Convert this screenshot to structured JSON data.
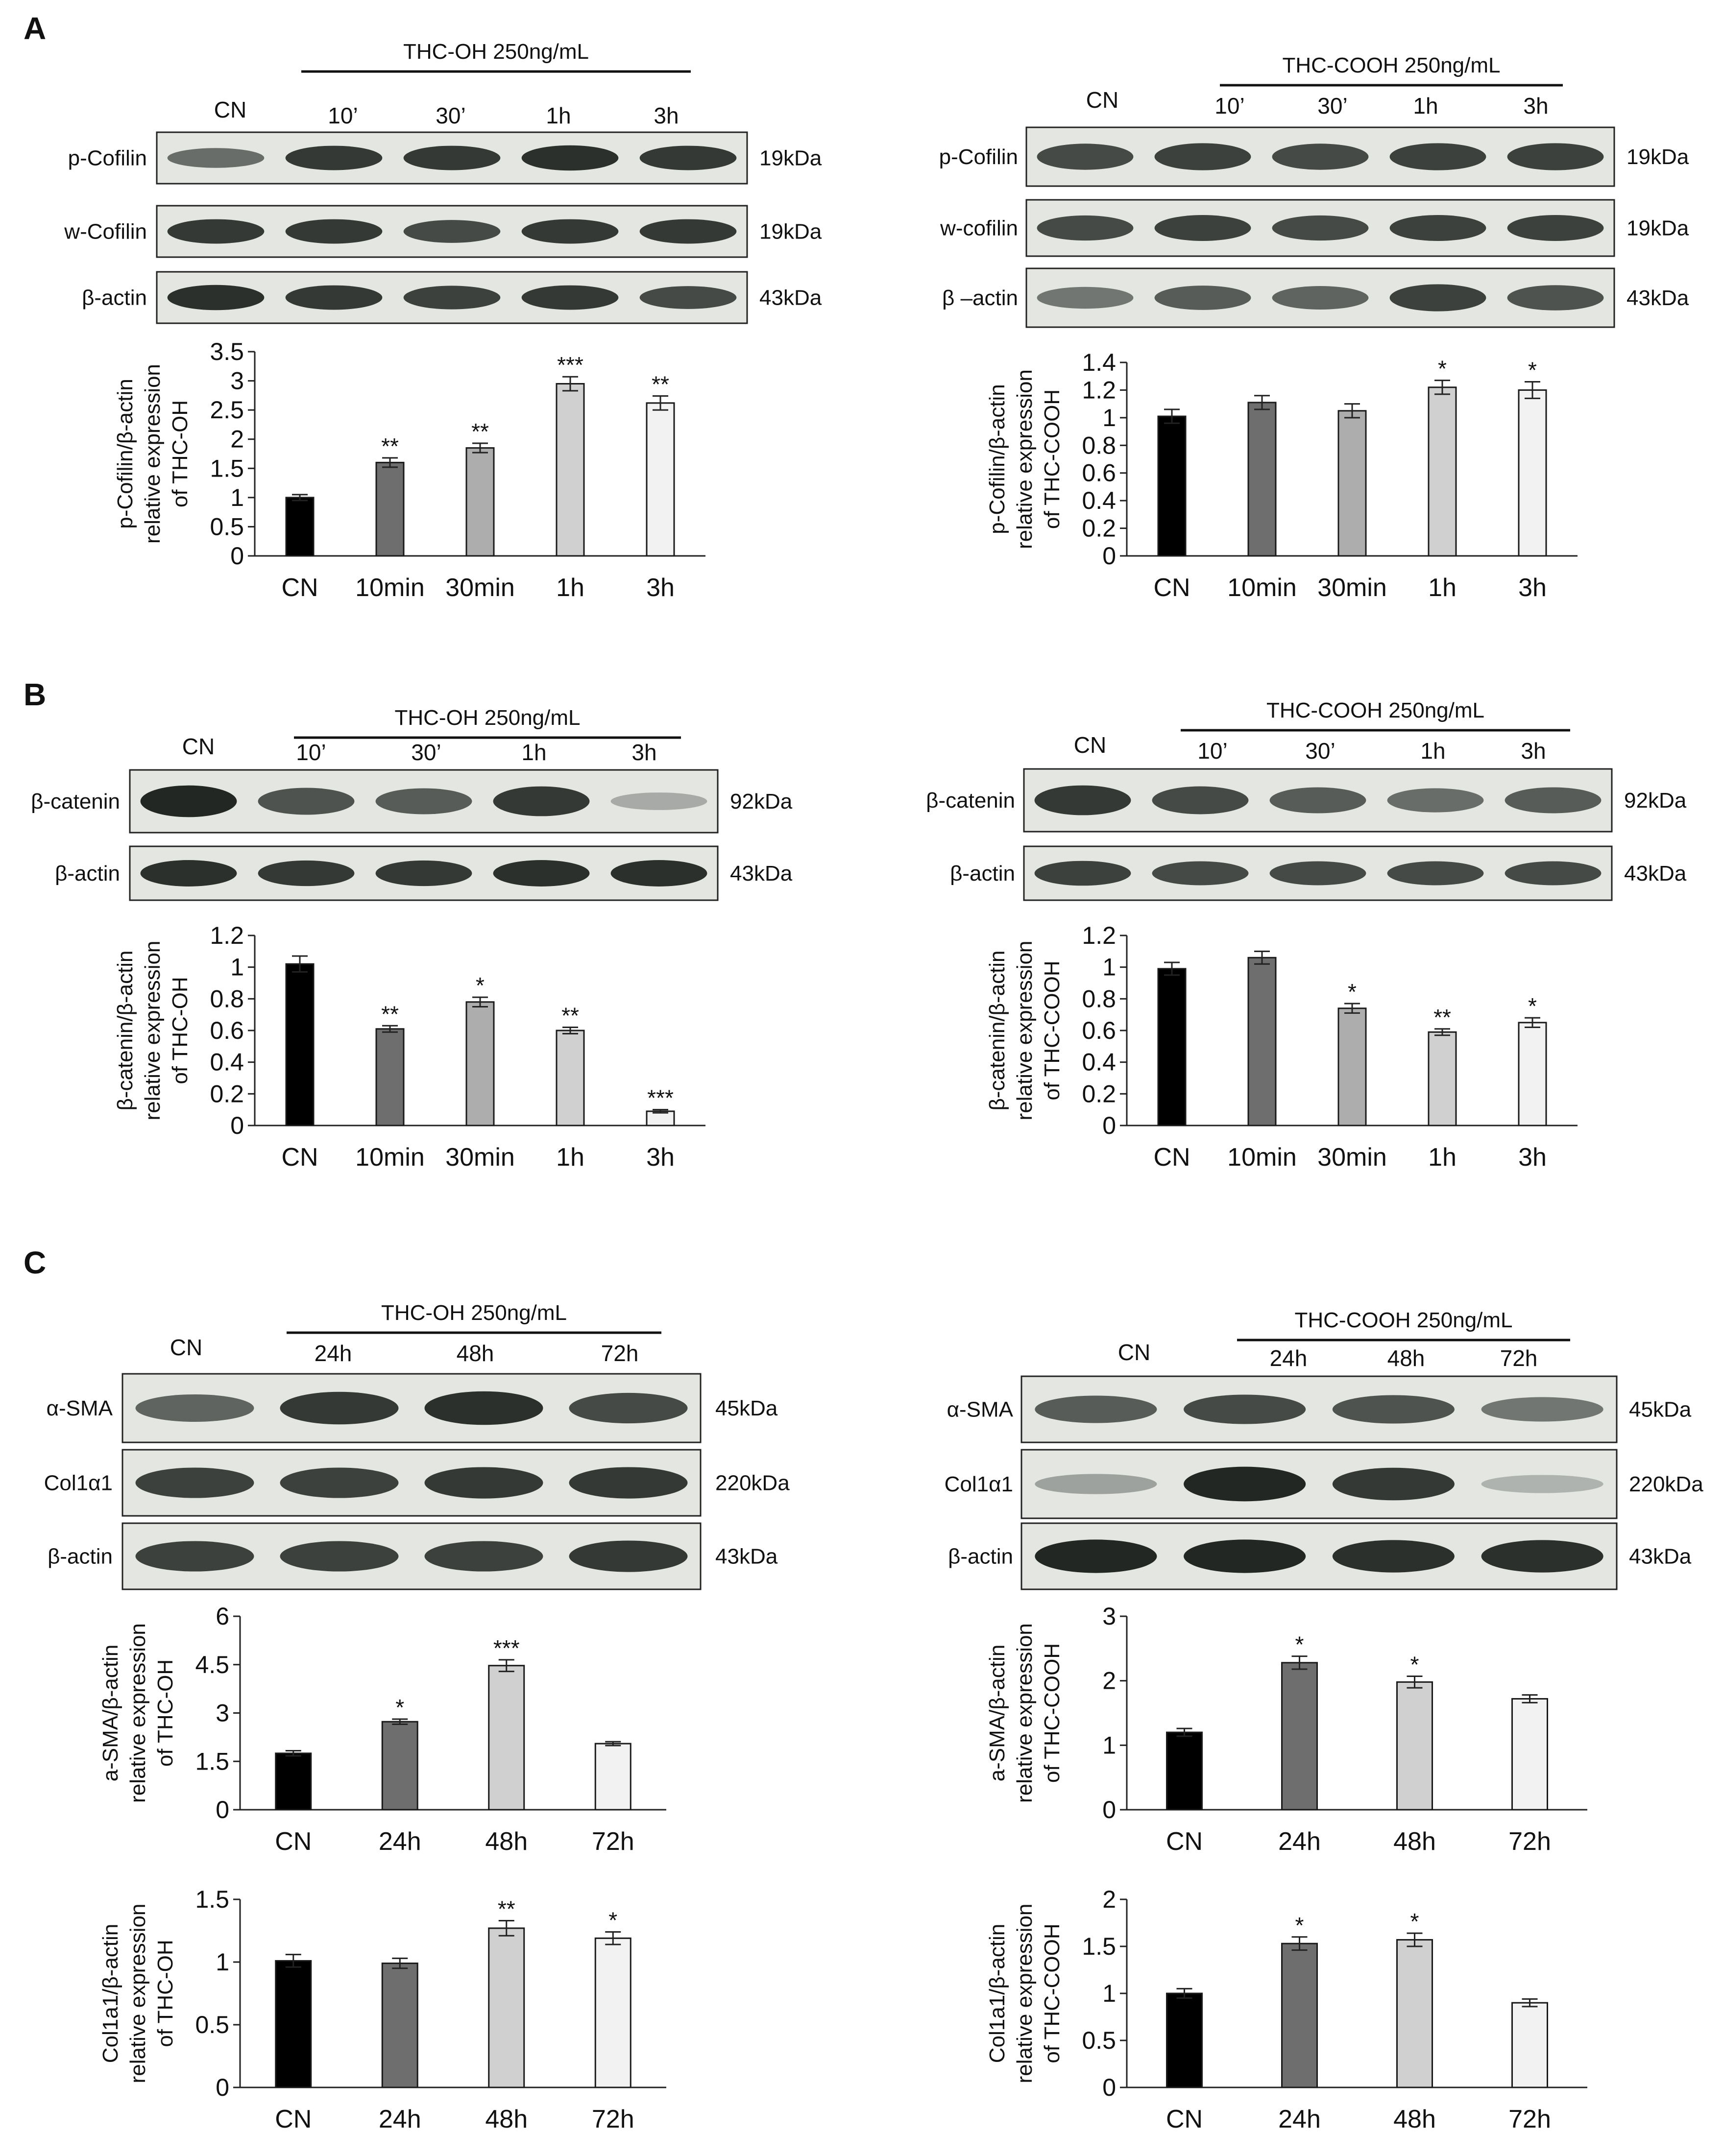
{
  "figure": {
    "panels": [
      {
        "letter": "A",
        "blots": [
          {
            "treatment": "THC-OH 250ng/mL",
            "lanes": [
              "CN",
              "10’",
              "30’",
              "1h",
              "3h"
            ],
            "rows": [
              {
                "label": "p-Cofilin",
                "kda": "19kDa",
                "intensity": [
                  0.55,
                  0.85,
                  0.85,
                  0.9,
                  0.85
                ]
              },
              {
                "label": "w-Cofilin",
                "kda": "19kDa",
                "intensity": [
                  0.85,
                  0.85,
                  0.75,
                  0.85,
                  0.85
                ]
              },
              {
                "label": "β-actin",
                "kda": "43kDa",
                "intensity": [
                  0.9,
                  0.85,
                  0.8,
                  0.85,
                  0.75
                ]
              }
            ]
          },
          {
            "treatment": "THC-COOH 250ng/mL",
            "lanes": [
              "CN",
              "10’",
              "30’",
              "1h",
              "3h"
            ],
            "rows": [
              {
                "label": "p-Cofilin",
                "kda": "19kDa",
                "intensity": [
                  0.75,
                  0.8,
                  0.75,
                  0.8,
                  0.8
                ]
              },
              {
                "label": "w-cofilin",
                "kda": "19kDa",
                "intensity": [
                  0.75,
                  0.8,
                  0.75,
                  0.8,
                  0.8
                ]
              },
              {
                "label": "β –actin",
                "kda": "43kDa",
                "intensity": [
                  0.5,
                  0.65,
                  0.6,
                  0.8,
                  0.7
                ]
              }
            ]
          }
        ]
      },
      {
        "letter": "B",
        "blots": [
          {
            "treatment": "THC-OH 250ng/mL",
            "lanes": [
              "CN",
              "10’",
              "30’",
              "1h",
              "3h"
            ],
            "rows": [
              {
                "label": "β-catenin",
                "kda": "92kDa",
                "intensity": [
                  0.95,
                  0.7,
                  0.65,
                  0.85,
                  0.2
                ]
              },
              {
                "label": "β-actin",
                "kda": "43kDa",
                "intensity": [
                  0.9,
                  0.85,
                  0.85,
                  0.9,
                  0.9
                ]
              }
            ]
          },
          {
            "treatment": "THC-COOH 250ng/mL",
            "lanes": [
              "CN",
              "10’",
              "30’",
              "1h",
              "3h"
            ],
            "rows": [
              {
                "label": "β-catenin",
                "kda": "92kDa",
                "intensity": [
                  0.85,
                  0.75,
                  0.65,
                  0.55,
                  0.65
                ]
              },
              {
                "label": "β-actin",
                "kda": "43kDa",
                "intensity": [
                  0.8,
                  0.75,
                  0.75,
                  0.75,
                  0.75
                ]
              }
            ]
          }
        ]
      },
      {
        "letter": "C",
        "blots": [
          {
            "treatment": "THC-OH 250ng/mL",
            "lanes": [
              "CN",
              "24h",
              "48h",
              "72h"
            ],
            "rows": [
              {
                "label": "α-SMA",
                "kda": "45kDa",
                "intensity": [
                  0.6,
                  0.85,
                  0.9,
                  0.75
                ]
              },
              {
                "label": "Col1α1",
                "kda": "220kDa",
                "intensity": [
                  0.8,
                  0.8,
                  0.85,
                  0.85
                ]
              },
              {
                "label": "β-actin",
                "kda": "43kDa",
                "intensity": [
                  0.8,
                  0.8,
                  0.8,
                  0.85
                ]
              }
            ]
          },
          {
            "treatment": "THC-COOH 250ng/mL",
            "lanes": [
              "CN",
              "24h",
              "48h",
              "72h"
            ],
            "rows": [
              {
                "label": "α-SMA",
                "kda": "45kDa",
                "intensity": [
                  0.65,
                  0.75,
                  0.7,
                  0.5
                ]
              },
              {
                "label": "Col1α1",
                "kda": "220kDa",
                "intensity": [
                  0.25,
                  0.95,
                  0.85,
                  0.15
                ]
              },
              {
                "label": "β-actin",
                "kda": "43kDa",
                "intensity": [
                  0.95,
                  0.95,
                  0.9,
                  0.9
                ]
              }
            ]
          }
        ]
      }
    ]
  },
  "chart_data": [
    {
      "type": "bar",
      "ylabel_lines": [
        "p-Cofilin/β-actin",
        "relative expression",
        "of THC-OH"
      ],
      "categories": [
        "CN",
        "10min",
        "30min",
        "1h",
        "3h"
      ],
      "values": [
        1.0,
        1.6,
        1.85,
        2.95,
        2.62
      ],
      "errors": [
        0.05,
        0.08,
        0.08,
        0.12,
        0.12
      ],
      "significance": [
        "",
        "**",
        "**",
        "***",
        "**"
      ],
      "ylim": [
        0,
        3.5
      ],
      "yticks": [
        0,
        0.5,
        1,
        1.5,
        2,
        2.5,
        3,
        3.5
      ],
      "ytick_labels": [
        "0",
        "0.5",
        "1",
        "1.5",
        "2",
        "2.5",
        "3",
        "3.5"
      ],
      "colors": [
        "#000000",
        "#6e6e6e",
        "#adadad",
        "#d0d0d0",
        "#f2f2f2"
      ]
    },
    {
      "type": "bar",
      "ylabel_lines": [
        "p-Cofilin/β-actin",
        "relative expression",
        "of THC-COOH"
      ],
      "categories": [
        "CN",
        "10min",
        "30min",
        "1h",
        "3h"
      ],
      "values": [
        1.01,
        1.11,
        1.05,
        1.22,
        1.2
      ],
      "errors": [
        0.05,
        0.05,
        0.05,
        0.05,
        0.06
      ],
      "significance": [
        "",
        "",
        "",
        "*",
        "*"
      ],
      "ylim": [
        0,
        1.4
      ],
      "yticks": [
        0,
        0.2,
        0.4,
        0.6,
        0.8,
        1,
        1.2,
        1.4
      ],
      "ytick_labels": [
        "0",
        "0.2",
        "0.4",
        "0.6",
        "0.8",
        "1",
        "1.2",
        "1.4"
      ],
      "colors": [
        "#000000",
        "#6e6e6e",
        "#adadad",
        "#d0d0d0",
        "#f2f2f2"
      ]
    },
    {
      "type": "bar",
      "ylabel_lines": [
        "β-catenin/β-actin",
        "relative expression",
        "of THC-OH"
      ],
      "categories": [
        "CN",
        "10min",
        "30min",
        "1h",
        "3h"
      ],
      "values": [
        1.02,
        0.61,
        0.78,
        0.6,
        0.09
      ],
      "errors": [
        0.05,
        0.02,
        0.03,
        0.02,
        0.01
      ],
      "significance": [
        "",
        "**",
        "*",
        "**",
        "***"
      ],
      "ylim": [
        0,
        1.2
      ],
      "yticks": [
        0,
        0.2,
        0.4,
        0.6,
        0.8,
        1,
        1.2
      ],
      "ytick_labels": [
        "0",
        "0.2",
        "0.4",
        "0.6",
        "0.8",
        "1",
        "1.2"
      ],
      "colors": [
        "#000000",
        "#6e6e6e",
        "#adadad",
        "#d0d0d0",
        "#f2f2f2"
      ]
    },
    {
      "type": "bar",
      "ylabel_lines": [
        "β-catenin/β-actin",
        "relative expression",
        "of THC-COOH"
      ],
      "categories": [
        "CN",
        "10min",
        "30min",
        "1h",
        "3h"
      ],
      "values": [
        0.99,
        1.06,
        0.74,
        0.59,
        0.65
      ],
      "errors": [
        0.04,
        0.04,
        0.03,
        0.02,
        0.03
      ],
      "significance": [
        "",
        "",
        "*",
        "**",
        "*"
      ],
      "ylim": [
        0,
        1.2
      ],
      "yticks": [
        0,
        0.2,
        0.4,
        0.6,
        0.8,
        1,
        1.2
      ],
      "ytick_labels": [
        "0",
        "0.2",
        "0.4",
        "0.6",
        "0.8",
        "1",
        "1.2"
      ],
      "colors": [
        "#000000",
        "#6e6e6e",
        "#adadad",
        "#d0d0d0",
        "#f2f2f2"
      ]
    },
    {
      "type": "bar",
      "ylabel_lines": [
        "a-SMA/β-actin",
        "relative expression",
        "of THC-OH"
      ],
      "categories": [
        "CN",
        "24h",
        "48h",
        "72h"
      ],
      "values": [
        1.75,
        2.73,
        4.47,
        2.05
      ],
      "errors": [
        0.08,
        0.08,
        0.18,
        0.06
      ],
      "significance": [
        "",
        "*",
        "***",
        ""
      ],
      "ylim": [
        0,
        6
      ],
      "yticks": [
        0,
        1.5,
        3,
        4.5,
        6
      ],
      "ytick_labels": [
        "0",
        "1.5",
        "3",
        "4.5",
        "6"
      ],
      "colors": [
        "#000000",
        "#6e6e6e",
        "#d0d0d0",
        "#f2f2f2"
      ]
    },
    {
      "type": "bar",
      "ylabel_lines": [
        "a-SMA/β-actin",
        "relative expression",
        "of THC-COOH"
      ],
      "categories": [
        "CN",
        "24h",
        "48h",
        "72h"
      ],
      "values": [
        1.2,
        2.28,
        1.98,
        1.72
      ],
      "errors": [
        0.06,
        0.1,
        0.09,
        0.06
      ],
      "significance": [
        "",
        "*",
        "*",
        ""
      ],
      "ylim": [
        0,
        3
      ],
      "yticks": [
        0,
        1,
        2,
        3
      ],
      "ytick_labels": [
        "0",
        "1",
        "2",
        "3"
      ],
      "colors": [
        "#000000",
        "#6e6e6e",
        "#d0d0d0",
        "#f2f2f2"
      ]
    },
    {
      "type": "bar",
      "ylabel_lines": [
        "Col1a1/β-actin",
        "relative expression",
        "of THC-OH"
      ],
      "categories": [
        "CN",
        "24h",
        "48h",
        "72h"
      ],
      "values": [
        1.01,
        0.99,
        1.27,
        1.19
      ],
      "errors": [
        0.05,
        0.04,
        0.06,
        0.05
      ],
      "significance": [
        "",
        "",
        "**",
        "*"
      ],
      "ylim": [
        0,
        1.5
      ],
      "yticks": [
        0,
        0.5,
        1,
        1.5
      ],
      "ytick_labels": [
        "0",
        "0.5",
        "1",
        "1.5"
      ],
      "colors": [
        "#000000",
        "#6e6e6e",
        "#d0d0d0",
        "#f2f2f2"
      ]
    },
    {
      "type": "bar",
      "ylabel_lines": [
        "Col1a1/β-actin",
        "relative expression",
        "of THC-COOH"
      ],
      "categories": [
        "CN",
        "24h",
        "48h",
        "72h"
      ],
      "values": [
        1.0,
        1.53,
        1.57,
        0.9
      ],
      "errors": [
        0.05,
        0.07,
        0.07,
        0.04
      ],
      "significance": [
        "",
        "*",
        "*",
        ""
      ],
      "ylim": [
        0,
        2
      ],
      "yticks": [
        0,
        0.5,
        1,
        1.5,
        2
      ],
      "ytick_labels": [
        "0",
        "0.5",
        "1",
        "1.5",
        "2"
      ],
      "colors": [
        "#000000",
        "#6e6e6e",
        "#d0d0d0",
        "#f2f2f2"
      ]
    }
  ]
}
